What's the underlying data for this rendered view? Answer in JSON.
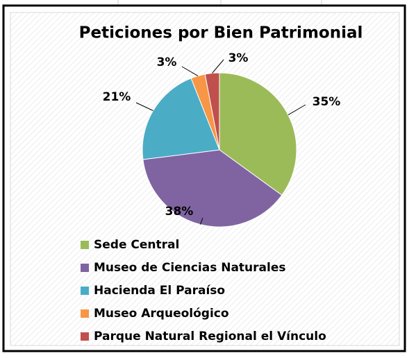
{
  "chart_data": {
    "type": "pie",
    "title": "Peticiones por Bien Patrimonial",
    "categories": [
      "Sede Central",
      "Museo de Ciencias Naturales",
      "Hacienda El Paraíso",
      "Museo Arqueológico",
      "Parque Natural Regional el Vínculo"
    ],
    "values": [
      35,
      38,
      21,
      3,
      3
    ],
    "value_labels": [
      "35%",
      "38%",
      "21%",
      "3%",
      "3%"
    ],
    "colors": [
      "#9bbb59",
      "#8064a2",
      "#4bacc6",
      "#f79646",
      "#c0504d"
    ],
    "legend": "bottom"
  }
}
